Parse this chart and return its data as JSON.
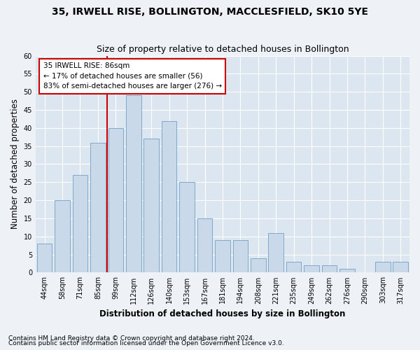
{
  "title": "35, IRWELL RISE, BOLLINGTON, MACCLESFIELD, SK10 5YE",
  "subtitle": "Size of property relative to detached houses in Bollington",
  "xlabel": "Distribution of detached houses by size in Bollington",
  "ylabel": "Number of detached properties",
  "categories": [
    "44sqm",
    "58sqm",
    "71sqm",
    "85sqm",
    "99sqm",
    "112sqm",
    "126sqm",
    "140sqm",
    "153sqm",
    "167sqm",
    "181sqm",
    "194sqm",
    "208sqm",
    "221sqm",
    "235sqm",
    "249sqm",
    "262sqm",
    "276sqm",
    "290sqm",
    "303sqm",
    "317sqm"
  ],
  "values": [
    8,
    20,
    27,
    36,
    40,
    49,
    37,
    42,
    25,
    15,
    9,
    9,
    4,
    11,
    3,
    2,
    2,
    1,
    0,
    3,
    3
  ],
  "bar_color": "#c9d9ea",
  "bar_edge_color": "#7fa8c8",
  "marker_line_color": "#cc0000",
  "annotation_line1": "35 IRWELL RISE: 86sqm",
  "annotation_line2": "← 17% of detached houses are smaller (56)",
  "annotation_line3": "83% of semi-detached houses are larger (276) →",
  "annotation_box_color": "#ffffff",
  "annotation_box_edge": "#cc0000",
  "ylim": [
    0,
    60
  ],
  "yticks": [
    0,
    5,
    10,
    15,
    20,
    25,
    30,
    35,
    40,
    45,
    50,
    55,
    60
  ],
  "footer_line1": "Contains HM Land Registry data © Crown copyright and database right 2024.",
  "footer_line2": "Contains public sector information licensed under the Open Government Licence v3.0.",
  "bg_color": "#eef2f7",
  "plot_bg_color": "#dce6f0",
  "grid_color": "#ffffff",
  "title_fontsize": 10,
  "subtitle_fontsize": 9,
  "axis_label_fontsize": 8.5,
  "tick_fontsize": 7,
  "footer_fontsize": 6.5,
  "annotation_fontsize": 7.5
}
